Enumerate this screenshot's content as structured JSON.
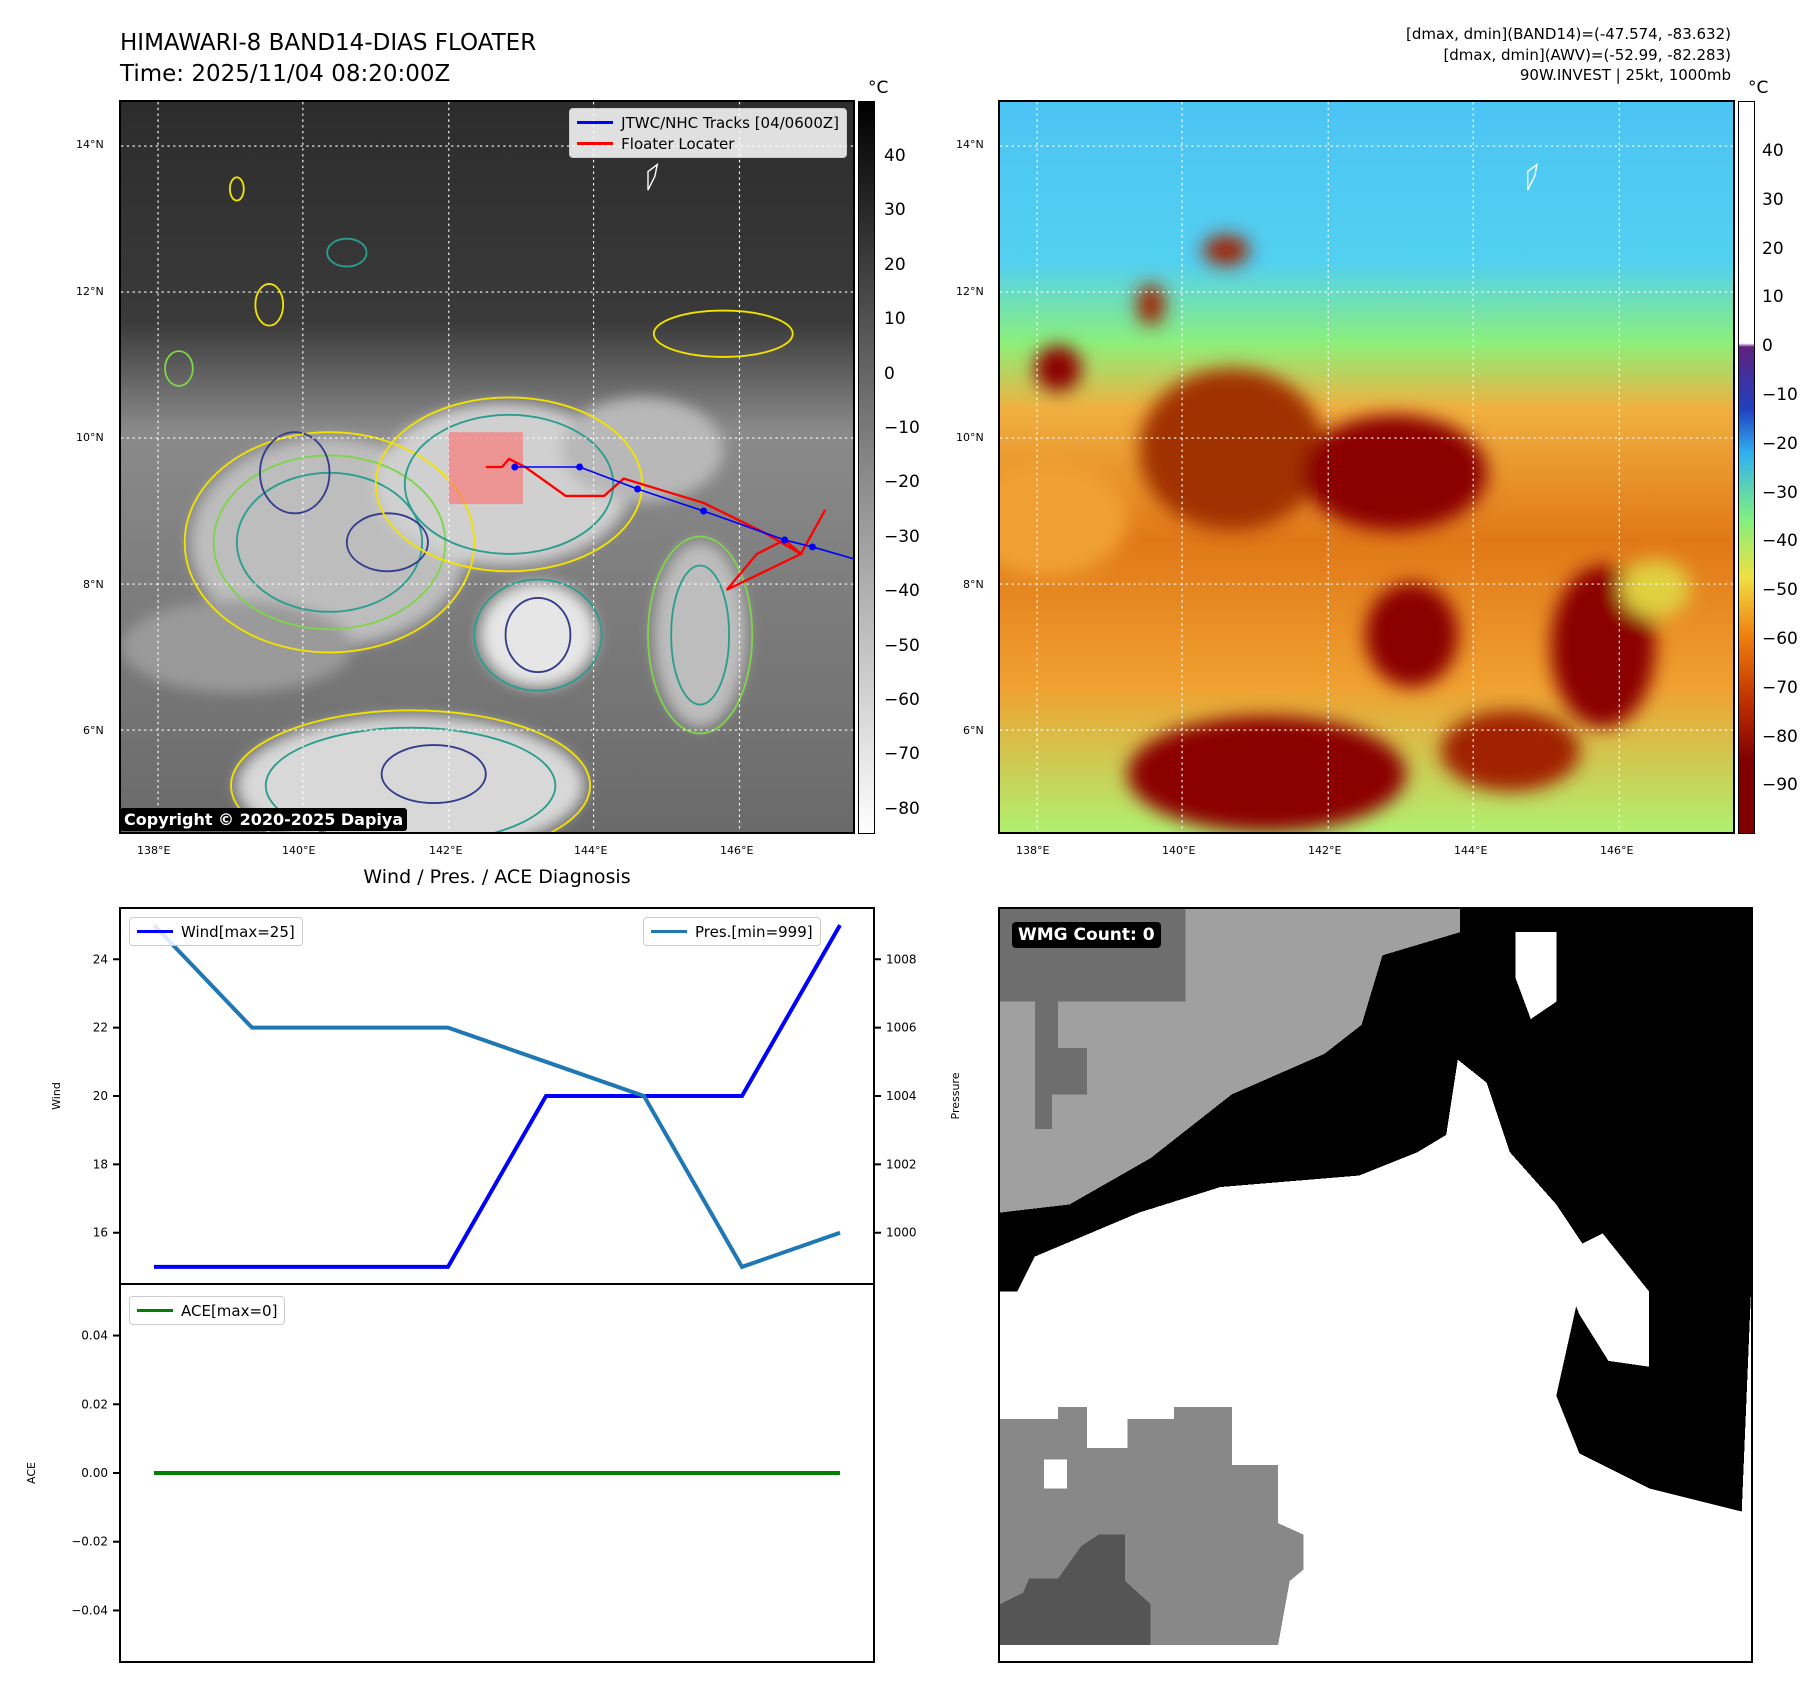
{
  "header": {
    "title_line1": "HIMAWARI-8 BAND14-DIAS FLOATER",
    "title_line2": "Time: 2025/11/04 08:20:00Z",
    "info_line1": "[dmax, dmin](BAND14)=(-47.574, -83.632)",
    "info_line2": "[dmax, dmin](AWV)=(-52.99, -82.283)",
    "info_line3": "90W.INVEST | 25kt, 1000mb"
  },
  "map": {
    "lat_labels": [
      "14°N",
      "12°N",
      "10°N",
      "8°N",
      "6°N"
    ],
    "lon_labels": [
      "138°E",
      "140°E",
      "142°E",
      "144°E",
      "146°E"
    ],
    "legend": {
      "tracks": "JTWC/NHC Tracks [04/0600Z]",
      "floater": "Floater Locater"
    },
    "copyright": "Copyright © 2020-2025 Dapiya",
    "colors": {
      "track": "#0000ff",
      "floater": "#ff0000"
    }
  },
  "colorbar_gray": {
    "unit": "°C",
    "ticks": [
      "40",
      "30",
      "20",
      "10",
      "0",
      "−10",
      "−20",
      "−30",
      "−40",
      "−50",
      "−60",
      "−70",
      "−80"
    ]
  },
  "colorbar_color": {
    "unit": "°C",
    "ticks": [
      "40",
      "30",
      "20",
      "10",
      "0",
      "−10",
      "−20",
      "−30",
      "−40",
      "−50",
      "−60",
      "−70",
      "−80",
      "−90"
    ]
  },
  "diagnosis": {
    "subtitle": "Wind / Pres. / ACE Diagnosis"
  },
  "wmg": {
    "label": "WMG Count: 0"
  },
  "chart_data": [
    {
      "type": "line",
      "title": "Wind / Pres. / ACE Diagnosis",
      "ylabel": "Wind",
      "ylabel_right": "Pressure",
      "x": [
        0,
        1,
        2,
        3,
        4,
        5,
        6,
        7
      ],
      "ylim": [
        14.5,
        25.5
      ],
      "ylim_right": [
        998.5,
        1009.5
      ],
      "yticks": [
        "16",
        "18",
        "20",
        "22",
        "24"
      ],
      "yticks_right": [
        "1000",
        "1002",
        "1004",
        "1006",
        "1008"
      ],
      "series": [
        {
          "name": "Wind[max=25]",
          "axis": "left",
          "color": "#0000ff",
          "values": [
            15,
            15,
            15,
            15,
            20,
            20,
            20,
            25
          ]
        },
        {
          "name": "Pres.[min=999]",
          "axis": "right",
          "color": "#1f77b4",
          "values": [
            1009,
            1006,
            1006,
            1006,
            1005,
            1004,
            999,
            1000
          ]
        }
      ],
      "legend": [
        "top-left",
        "top-right"
      ]
    },
    {
      "type": "line",
      "ylabel": "ACE",
      "x": [
        0,
        1,
        2,
        3,
        4,
        5,
        6,
        7
      ],
      "ylim": [
        -0.055,
        0.055
      ],
      "yticks": [
        "0.04",
        "0.02",
        "0.00",
        "−0.02",
        "−0.04"
      ],
      "series": [
        {
          "name": "ACE[max=0]",
          "color": "#008000",
          "values": [
            0,
            0,
            0,
            0,
            0,
            0,
            0,
            0
          ]
        }
      ],
      "legend": "top-left"
    }
  ]
}
